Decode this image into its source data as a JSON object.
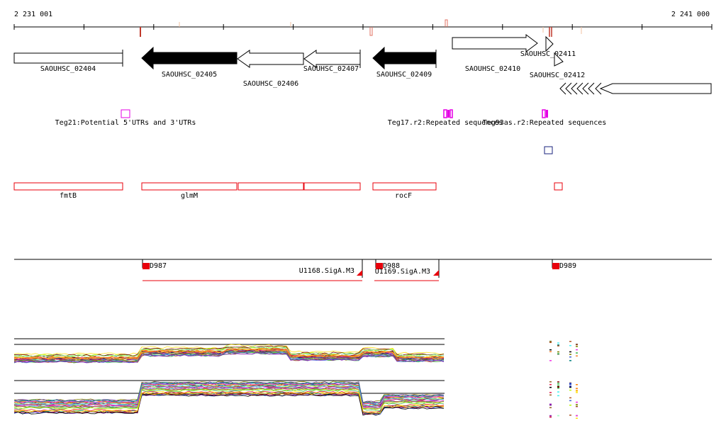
{
  "ruler": {
    "start_label": "2 231 001",
    "end_label": "2 241 000",
    "start_pos": 2231001,
    "end_pos": 2241000
  },
  "genes": [
    {
      "name": "SAOUHSC_02404",
      "start": 2231001,
      "end": 2232560,
      "strand": "+",
      "style": "plain"
    },
    {
      "name": "SAOUHSC_02405",
      "start": 2232830,
      "end": 2234180,
      "strand": "-",
      "style": "filled"
    },
    {
      "name": "SAOUHSC_02406",
      "start": 2234180,
      "end": 2235120,
      "strand": "-",
      "style": "open"
    },
    {
      "name": "SAOUHSC_02407",
      "start": 2235120,
      "end": 2235930,
      "strand": "-",
      "style": "open"
    },
    {
      "name": "SAOUHSC_02409",
      "start": 2236160,
      "end": 2237070,
      "strand": "-",
      "style": "filled"
    },
    {
      "name": "SAOUHSC_02410",
      "start": 2237250,
      "end": 2238480,
      "strand": "+",
      "style": "open"
    },
    {
      "name": "SAOUHSC_02411",
      "start": 2238510,
      "end": 2238620,
      "strand": "+",
      "style": "open"
    },
    {
      "name": "SAOUHSC_02412",
      "start": 2238550,
      "end": 2238600,
      "strand": "+",
      "style": "open"
    }
  ],
  "annotations": [
    {
      "label": "Teg21:Potential 5'UTRs and 3'UTRs",
      "color": "#e600e6",
      "pos": 2232600
    },
    {
      "label": "Teg17.r2:Repeated sequences",
      "color": "#e600e6",
      "pos": 2237120
    },
    {
      "label": "Teg93as.r2:Repeated sequences",
      "color": "#e600e6",
      "pos": 2238500
    }
  ],
  "operons": [
    {
      "label": "fmtB",
      "start": 2231001,
      "end": 2232560
    },
    {
      "label": "glmM",
      "start": 2232830,
      "end": 2235930
    },
    {
      "label": "rocF",
      "start": 2236160,
      "end": 2237070
    }
  ],
  "promoters": [
    {
      "label": "D987",
      "pos": 2232830
    },
    {
      "label": "D988",
      "pos": 2236200
    },
    {
      "label": "D989",
      "pos": 2238620
    }
  ],
  "regulons": [
    {
      "label": "U1168.SigA.M3",
      "start": 2232830,
      "end": 2235930
    },
    {
      "label": "U1169.SigA.M3",
      "start": 2236030,
      "end": 2237070
    }
  ],
  "colors": {
    "axis": "#000000",
    "gene_fill": "#000000",
    "feature_red": "#e8000b",
    "annotation_magenta": "#e600e6",
    "box_navy": "#1a237e"
  }
}
